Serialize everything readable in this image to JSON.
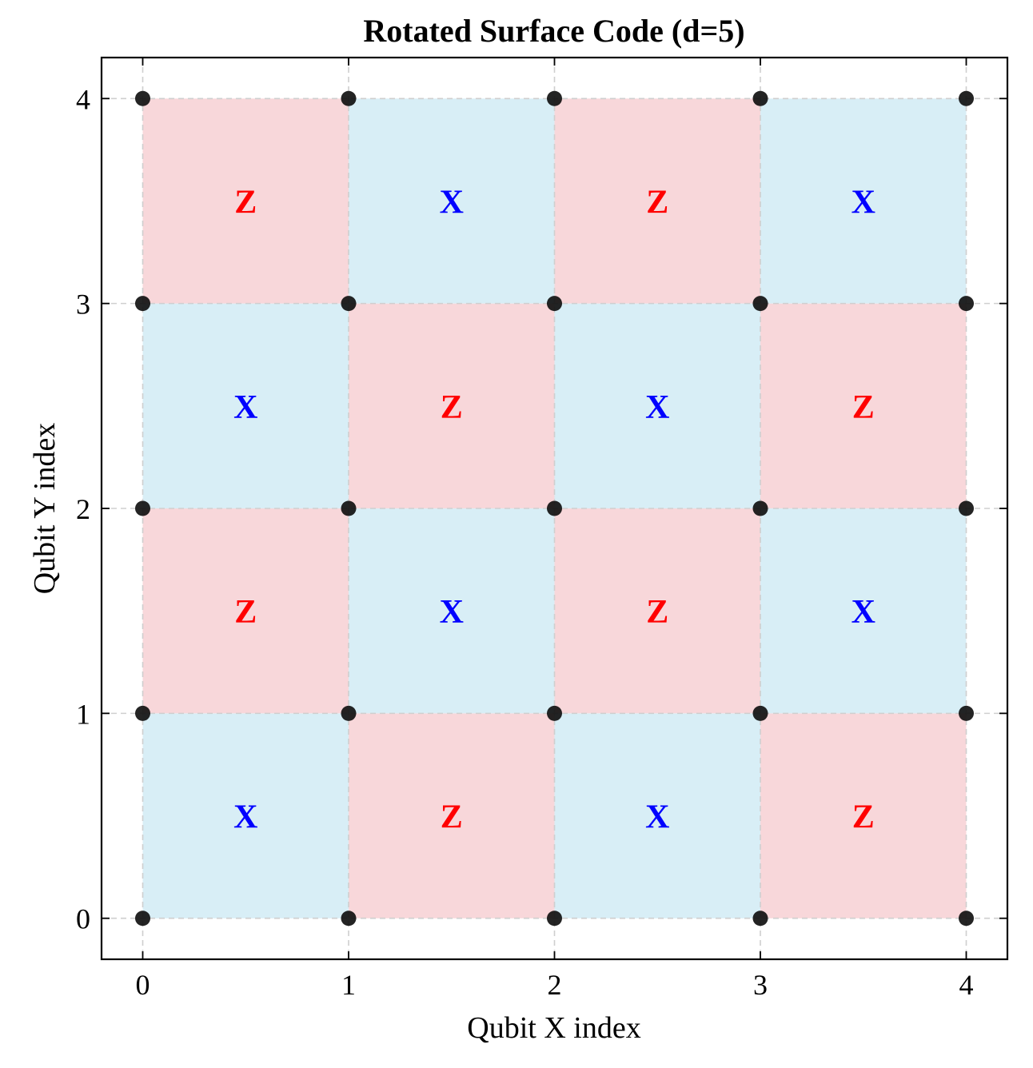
{
  "chart_data": {
    "type": "heatmap",
    "title": "Rotated Surface Code (d=5)",
    "xlabel": "Qubit X index",
    "ylabel": "Qubit Y index",
    "xlim": [
      -0.2,
      4.2
    ],
    "ylim": [
      -0.2,
      4.2
    ],
    "x_ticks": [
      "0",
      "1",
      "2",
      "3",
      "4"
    ],
    "y_ticks": [
      "0",
      "1",
      "2",
      "3",
      "4"
    ],
    "grid": true,
    "grid_style": "dashed",
    "colors": {
      "X": "#d8eef6",
      "Z": "#f8d7da",
      "X_text": "#0000ff",
      "Z_text": "#ff0000",
      "qubit": "#111111",
      "grid": "#cfcfcf"
    },
    "qubits": {
      "x": [
        0,
        1,
        2,
        3,
        4
      ],
      "y": [
        0,
        1,
        2,
        3,
        4
      ]
    },
    "stabilizers": [
      {
        "x": 0.5,
        "y": 0.5,
        "type": "X"
      },
      {
        "x": 1.5,
        "y": 0.5,
        "type": "Z"
      },
      {
        "x": 2.5,
        "y": 0.5,
        "type": "X"
      },
      {
        "x": 3.5,
        "y": 0.5,
        "type": "Z"
      },
      {
        "x": 0.5,
        "y": 1.5,
        "type": "Z"
      },
      {
        "x": 1.5,
        "y": 1.5,
        "type": "X"
      },
      {
        "x": 2.5,
        "y": 1.5,
        "type": "Z"
      },
      {
        "x": 3.5,
        "y": 1.5,
        "type": "X"
      },
      {
        "x": 0.5,
        "y": 2.5,
        "type": "X"
      },
      {
        "x": 1.5,
        "y": 2.5,
        "type": "Z"
      },
      {
        "x": 2.5,
        "y": 2.5,
        "type": "X"
      },
      {
        "x": 3.5,
        "y": 2.5,
        "type": "Z"
      },
      {
        "x": 0.5,
        "y": 3.5,
        "type": "Z"
      },
      {
        "x": 1.5,
        "y": 3.5,
        "type": "X"
      },
      {
        "x": 2.5,
        "y": 3.5,
        "type": "Z"
      },
      {
        "x": 3.5,
        "y": 3.5,
        "type": "X"
      }
    ]
  }
}
